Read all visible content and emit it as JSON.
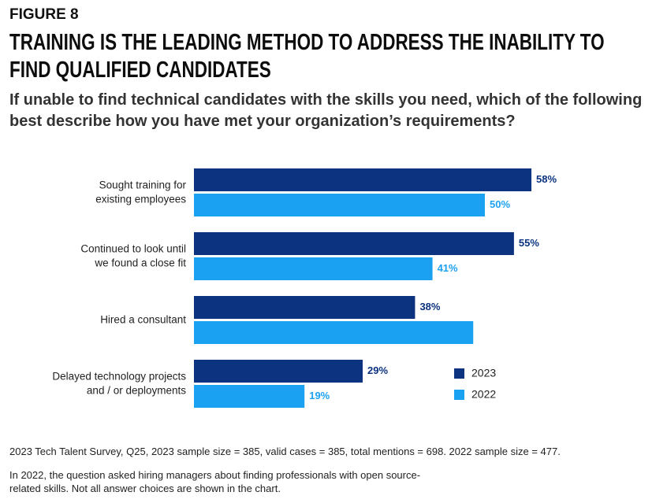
{
  "chart_data": {
    "type": "bar",
    "figure_label": "FIGURE 8",
    "title": "TRAINING IS THE LEADING METHOD TO ADDRESS THE INABILITY TO FIND QUALIFIED CANDIDATES",
    "subtitle": "If unable to find technical candidates with the skills you need, which of the following best describe how you have met your organization’s requirements?",
    "categories": [
      "Sought training for\nexisting employees",
      "Continued to look until\nwe found a close fit",
      "Hired a consultant",
      "Delayed technology projects\nand / or deployments"
    ],
    "series": [
      {
        "name": "2023",
        "color": "#0b3380",
        "values": [
          58,
          55,
          38,
          29
        ],
        "value_labels": [
          "58%",
          "55%",
          "38%",
          "29%"
        ]
      },
      {
        "name": "2022",
        "color": "#1ba1f2",
        "values": [
          50,
          41,
          48,
          19
        ],
        "value_labels": [
          "50%",
          "41%",
          null,
          "19%"
        ]
      }
    ],
    "notes": [
      "2023 Tech Talent Survey, Q25, 2023 sample size = 385, valid cases = 385, total mentions = 698. 2022 sample size = 477.",
      "In 2022, the question asked hiring managers about finding professionals with open source-related skills. Not all answer choices are shown in the chart."
    ]
  }
}
